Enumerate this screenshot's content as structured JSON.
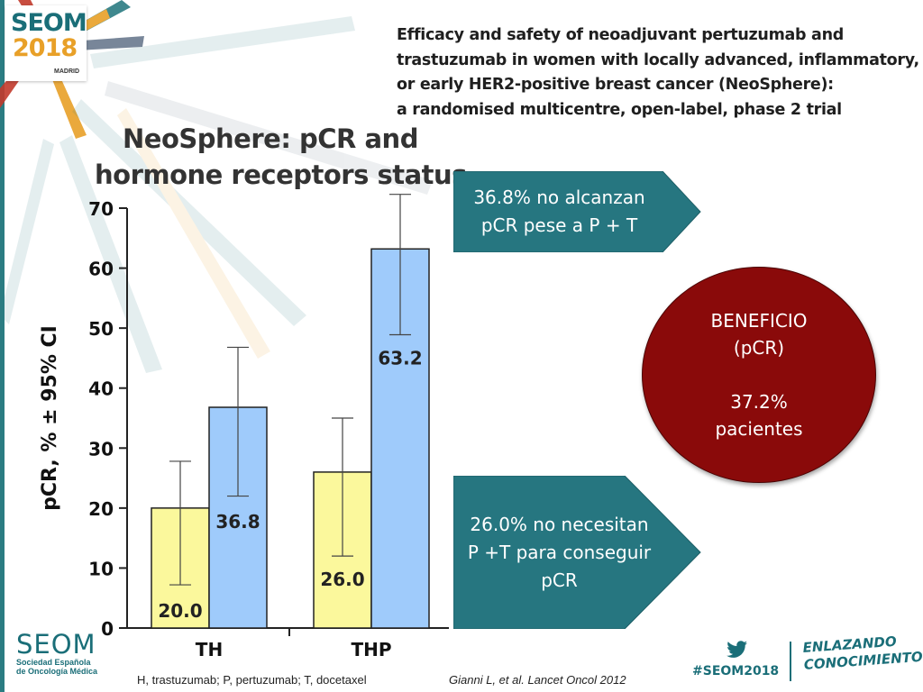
{
  "event_logo": {
    "name": "SEOM",
    "year": "2018",
    "city": "MADRID"
  },
  "paper_title_lines": [
    "Efficacy and safety of neoadjuvant pertuzumab and",
    "trastuzumab in women with locally advanced, inflammatory,",
    "or early HER2-positive breast cancer (NeoSphere):",
    "a randomised multicentre, open-label, phase 2 trial"
  ],
  "callouts": {
    "top_lines": [
      "36.8% no alcanzan",
      "pCR pese a P + T"
    ],
    "bottom_lines": [
      "26.0% no necesitan",
      "P +T para conseguir",
      "pCR"
    ],
    "benefit_lines": [
      "BENEFICIO",
      "(pCR)"
    ],
    "benefit_value_lines": [
      "37.2%",
      "pacientes"
    ]
  },
  "colors": {
    "arrow": "#267680",
    "benefit": "#8a0a0a",
    "yellow_bar": "#fbf89c",
    "blue_bar": "#9fcbfb"
  },
  "chart_data": {
    "type": "bar",
    "title_lines": [
      "NeoSphere: pCR and",
      "hormone receptors status"
    ],
    "ylabel": "pCR, % ± 95% CI",
    "xlabel": "",
    "ylim": [
      0,
      70
    ],
    "yticks": [
      0,
      10,
      20,
      30,
      40,
      50,
      60,
      70
    ],
    "categories": [
      "TH",
      "THP"
    ],
    "series": [
      {
        "color": "#fbf89c",
        "values": [
          20.0,
          26.0
        ],
        "labels": [
          "20.0",
          "26.0"
        ],
        "ci_low": [
          7.2,
          12.0
        ],
        "ci_high": [
          27.8,
          35.0
        ]
      },
      {
        "color": "#9fcbfb",
        "values": [
          36.8,
          63.2
        ],
        "labels": [
          "36.8",
          "63.2"
        ],
        "ci_low": [
          22.0,
          48.9
        ],
        "ci_high": [
          46.8,
          72.3
        ]
      }
    ],
    "grid": false,
    "legend": "none"
  },
  "footer": {
    "org_name": "SEOM",
    "org_sub_lines": [
      "Sociedad Española",
      "de Oncología Médica"
    ],
    "footnote": "H, trastuzumab; P, pertuzumab; T, docetaxel",
    "citation": "Gianni L, et al.  Lancet Oncol 2012",
    "hashtag": "#SEOM2018",
    "twitter_icon": "twitter-bird-icon",
    "slogan_lines": [
      "ENLAZANDO",
      "CONOCIMIENTO"
    ]
  }
}
